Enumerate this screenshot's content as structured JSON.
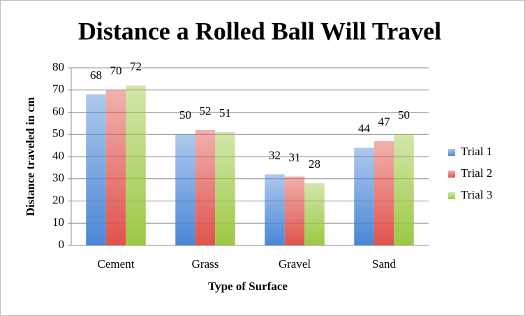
{
  "chart_data": {
    "type": "bar",
    "title": "Distance a Rolled Ball Will Travel",
    "xlabel": "Type of Surface",
    "ylabel": "Distance traveled in cm",
    "categories": [
      "Cement",
      "Grass",
      "Gravel",
      "Sand"
    ],
    "series": [
      {
        "name": "Trial 1",
        "color": "#4a86d6",
        "values": [
          68,
          50,
          32,
          44
        ]
      },
      {
        "name": "Trial 2",
        "color": "#e0524c",
        "values": [
          70,
          52,
          31,
          47
        ]
      },
      {
        "name": "Trial 3",
        "color": "#9cc843",
        "values": [
          72,
          51,
          28,
          50
        ]
      }
    ],
    "ylim": [
      0,
      80
    ],
    "yticks": [
      0,
      10,
      20,
      30,
      40,
      50,
      60,
      70,
      80
    ],
    "grid": true,
    "legend": "right"
  }
}
